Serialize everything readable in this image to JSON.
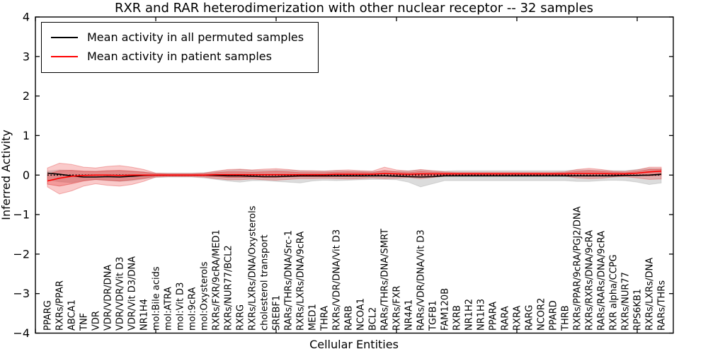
{
  "chart_data": {
    "type": "line",
    "title": "RXR and RAR heterodimerization with other nuclear receptor -- 32 samples",
    "xlabel": "Cellular Entities",
    "ylabel": "Inferred Activity",
    "ylim": [
      -4,
      4
    ],
    "yticks": [
      4,
      3,
      2,
      1,
      0,
      -1,
      -2,
      -3,
      -4
    ],
    "xlim": [
      0,
      53
    ],
    "xticks": [
      0,
      10,
      20,
      30,
      40,
      50
    ],
    "grid": false,
    "legend_position": "upper left",
    "legend": [
      {
        "label": "Mean activity in all permuted samples",
        "color": "#000000"
      },
      {
        "label": "Mean activity in patient samples",
        "color": "#ff0000"
      }
    ],
    "categories": [
      "PPARG",
      "RXRs/PPAR",
      "ABCA1",
      "TNF",
      "VDR",
      "VDR/VDR/DNA",
      "VDR/VDR/Vit D3",
      "VDR/Vit D3/DNA",
      "NR1H4",
      "mol:Bile acids",
      "mol:ATRA",
      "mol:Vit D3",
      "mol:9cRA",
      "mol:Oxysterols",
      "RXRs/FXR/9cRA/MED1",
      "RXRs/NUR77/BCL2",
      "RXRG",
      "RXRs/LXRs/DNA/Oxysterols",
      "cholesterol transport",
      "SREBF1",
      "RARs/THRs/DNA/Src-1",
      "RXRs/LXRs/DNA/9cRA",
      "MED1",
      "THRA",
      "RXRs/VDR/DNA/Vit D3",
      "RARB",
      "NCOA1",
      "BCL2",
      "RARs/THRs/DNA/SMRT",
      "RXRs/FXR",
      "NR4A1",
      "RARs/VDR/DNA/Vit D3",
      "TGFB1",
      "FAM120B",
      "RXRB",
      "NR1H2",
      "NR1H3",
      "PPARA",
      "RARA",
      "RXRA",
      "RARG",
      "NCOR2",
      "PPARD",
      "THRB",
      "RXRs/PPAR/9cRA/PGJ2/DNA",
      "RXRs/RXRs/DNA/9cRA",
      "RARs/RARs/DNA/9cRA",
      "RXR alpha/CCPG",
      "RXRs/NUR77",
      "RPS6KB1",
      "RXRs/LXRs/DNA",
      "RARs/THRs"
    ],
    "series": [
      {
        "name": "Mean activity in all permuted samples",
        "color": "#000000",
        "style": "solid",
        "values": [
          0.05,
          0.02,
          -0.02,
          -0.05,
          -0.05,
          -0.04,
          -0.05,
          -0.03,
          -0.01,
          0,
          0,
          0,
          0,
          0,
          -0.01,
          -0.02,
          -0.02,
          -0.03,
          -0.04,
          -0.04,
          -0.03,
          -0.02,
          -0.02,
          -0.02,
          -0.02,
          -0.02,
          -0.02,
          -0.02,
          -0.02,
          -0.03,
          -0.04,
          -0.05,
          -0.04,
          -0.02,
          -0.02,
          -0.02,
          -0.02,
          -0.02,
          -0.02,
          -0.02,
          -0.02,
          -0.02,
          -0.02,
          -0.02,
          -0.02,
          -0.02,
          -0.02,
          -0.02,
          -0.01,
          -0.01,
          0,
          0.02
        ]
      },
      {
        "name": "Mean activity in patient samples",
        "color": "#ff0000",
        "style": "solid",
        "values": [
          -0.15,
          -0.08,
          -0.03,
          -0.01,
          0,
          0,
          -0.01,
          0,
          0,
          0,
          0,
          0,
          0,
          0,
          0.01,
          0.01,
          0.01,
          0.01,
          0.01,
          0.01,
          0.01,
          0.01,
          0.01,
          0.01,
          0.02,
          0.02,
          0.02,
          0.02,
          0.04,
          0.03,
          0.02,
          0.03,
          0.03,
          0.03,
          0.03,
          0.03,
          0.03,
          0.03,
          0.03,
          0.03,
          0.03,
          0.03,
          0.03,
          0.03,
          0.04,
          0.04,
          0.04,
          0.03,
          0.03,
          0.05,
          0.08,
          0.1
        ]
      },
      {
        "name": "zero reference",
        "color": "#000000",
        "style": "dotted",
        "constant": 0
      }
    ],
    "bands": [
      {
        "name": "permuted samples range",
        "color": "rgba(130,130,130,0.28)",
        "stroke": "rgba(130,130,130,0.25)",
        "hi": [
          0.1,
          0.13,
          0.12,
          0.1,
          0.1,
          0.11,
          0.11,
          0.1,
          0.08,
          0.05,
          0.05,
          0.05,
          0.05,
          0.06,
          0.09,
          0.12,
          0.14,
          0.12,
          0.12,
          0.13,
          0.12,
          0.11,
          0.1,
          0.1,
          0.11,
          0.1,
          0.1,
          0.09,
          0.1,
          0.1,
          0.11,
          0.13,
          0.11,
          0.1,
          0.11,
          0.11,
          0.11,
          0.11,
          0.11,
          0.11,
          0.11,
          0.11,
          0.11,
          0.11,
          0.13,
          0.13,
          0.12,
          0.11,
          0.11,
          0.14,
          0.17,
          0.16
        ],
        "lo": [
          -0.12,
          -0.17,
          -0.19,
          -0.14,
          -0.12,
          -0.14,
          -0.16,
          -0.14,
          -0.1,
          -0.06,
          -0.05,
          -0.05,
          -0.05,
          -0.07,
          -0.11,
          -0.15,
          -0.18,
          -0.14,
          -0.14,
          -0.16,
          -0.18,
          -0.2,
          -0.15,
          -0.13,
          -0.14,
          -0.13,
          -0.12,
          -0.11,
          -0.11,
          -0.12,
          -0.18,
          -0.3,
          -0.22,
          -0.14,
          -0.14,
          -0.14,
          -0.14,
          -0.14,
          -0.14,
          -0.14,
          -0.14,
          -0.14,
          -0.14,
          -0.14,
          -0.16,
          -0.16,
          -0.14,
          -0.13,
          -0.14,
          -0.18,
          -0.24,
          -0.2
        ]
      },
      {
        "name": "patient samples range (outer)",
        "color": "rgba(235,60,60,0.27)",
        "stroke": "rgba(220,50,50,0.35)",
        "hi": [
          0.18,
          0.3,
          0.27,
          0.2,
          0.18,
          0.22,
          0.24,
          0.2,
          0.14,
          0.05,
          0.04,
          0.04,
          0.04,
          0.05,
          0.1,
          0.14,
          0.15,
          0.13,
          0.15,
          0.16,
          0.14,
          0.11,
          0.11,
          0.1,
          0.12,
          0.13,
          0.11,
          0.1,
          0.2,
          0.13,
          0.1,
          0.14,
          0.11,
          0.08,
          0.07,
          0.07,
          0.07,
          0.07,
          0.07,
          0.07,
          0.07,
          0.07,
          0.07,
          0.08,
          0.14,
          0.17,
          0.14,
          0.1,
          0.09,
          0.13,
          0.2,
          0.2
        ],
        "lo": [
          -0.3,
          -0.48,
          -0.4,
          -0.28,
          -0.22,
          -0.26,
          -0.28,
          -0.24,
          -0.16,
          -0.05,
          -0.04,
          -0.04,
          -0.04,
          -0.05,
          -0.09,
          -0.12,
          -0.12,
          -0.1,
          -0.12,
          -0.13,
          -0.11,
          -0.09,
          -0.09,
          -0.08,
          -0.09,
          -0.1,
          -0.09,
          -0.07,
          -0.09,
          -0.08,
          -0.06,
          -0.09,
          -0.06,
          -0.03,
          -0.02,
          -0.02,
          -0.02,
          -0.02,
          -0.02,
          -0.02,
          -0.02,
          -0.02,
          -0.02,
          -0.03,
          -0.07,
          -0.09,
          -0.08,
          -0.05,
          -0.04,
          -0.07,
          -0.11,
          -0.1
        ]
      },
      {
        "name": "patient samples range (inner)",
        "color": "rgba(228,45,45,0.3)",
        "stroke": "rgba(220,50,50,0.45)",
        "hi": [
          0.02,
          0.11,
          0.12,
          0.1,
          0.09,
          0.11,
          0.12,
          0.1,
          0.07,
          0.03,
          0.02,
          0.02,
          0.02,
          0.03,
          0.06,
          0.08,
          0.08,
          0.07,
          0.08,
          0.09,
          0.08,
          0.06,
          0.06,
          0.06,
          0.07,
          0.08,
          0.07,
          0.06,
          0.12,
          0.08,
          0.06,
          0.09,
          0.07,
          0.06,
          0.05,
          0.05,
          0.05,
          0.05,
          0.05,
          0.05,
          0.05,
          0.05,
          0.05,
          0.06,
          0.09,
          0.11,
          0.09,
          0.07,
          0.06,
          0.09,
          0.14,
          0.15
        ],
        "lo": [
          -0.23,
          -0.28,
          -0.22,
          -0.15,
          -0.11,
          -0.13,
          -0.15,
          -0.12,
          -0.08,
          -0.03,
          -0.02,
          -0.02,
          -0.02,
          -0.03,
          -0.04,
          -0.06,
          -0.06,
          -0.05,
          -0.06,
          -0.06,
          -0.05,
          -0.04,
          -0.04,
          -0.04,
          -0.04,
          -0.04,
          -0.04,
          -0.03,
          -0.03,
          -0.03,
          -0.02,
          -0.03,
          -0.02,
          0,
          0,
          0,
          0,
          0,
          0,
          0,
          0,
          0,
          0,
          0,
          -0.02,
          -0.03,
          -0.02,
          -0.01,
          -0.01,
          -0.01,
          -0.02,
          0
        ]
      }
    ]
  }
}
